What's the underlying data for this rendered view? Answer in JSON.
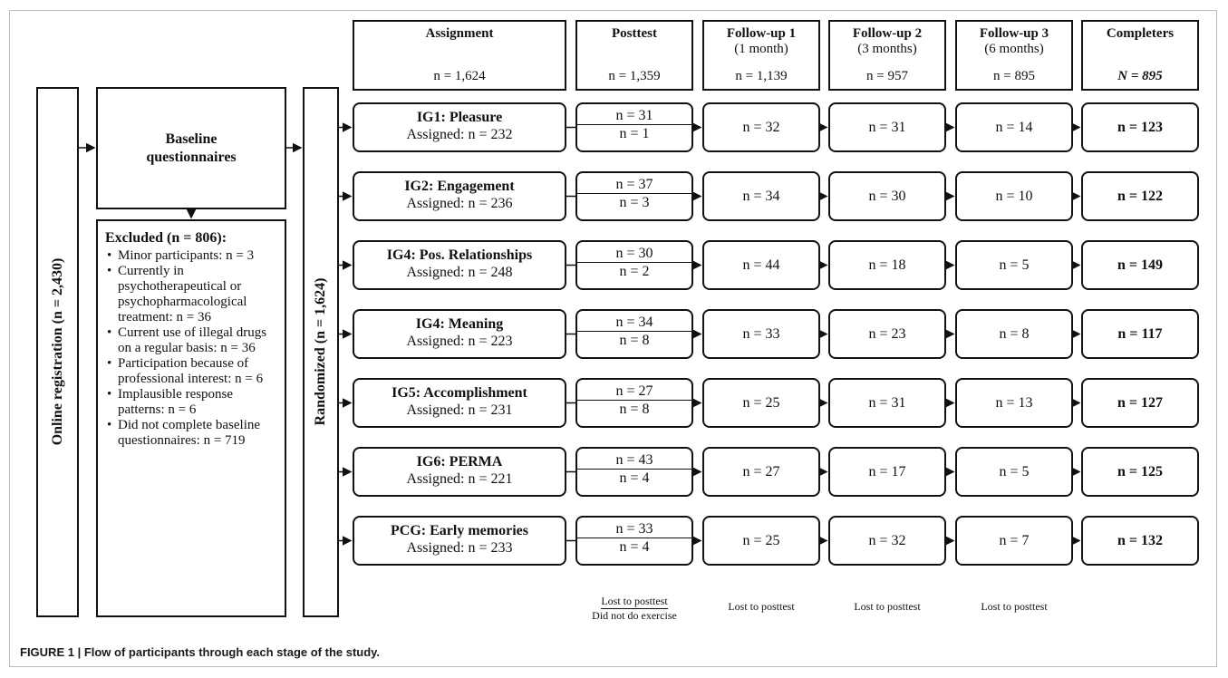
{
  "headers": [
    {
      "title": "Assignment",
      "sub": "",
      "n": "n = 1,624"
    },
    {
      "title": "Posttest",
      "sub": "",
      "n": "n = 1,359"
    },
    {
      "title": "Follow-up 1",
      "sub": "(1 month)",
      "n": "n = 1,139"
    },
    {
      "title": "Follow-up 2",
      "sub": "(3 months)",
      "n": "n = 957"
    },
    {
      "title": "Follow-up 3",
      "sub": "(6 months)",
      "n": "n = 895"
    },
    {
      "title": "Completers",
      "sub": "",
      "n": "N = 895"
    }
  ],
  "registration": "Online registration (n = 2,430)",
  "baseline": "Baseline questionnaires",
  "randomized": "Randomized (n = 1,624)",
  "excluded": {
    "heading": "Excluded (n = 806):",
    "items": [
      "Minor participants: n = 3",
      "Currently in psychotherapeutical or psychopharmacological treatment: n = 36",
      "Current use of illegal drugs on a regular basis: n = 36",
      "Participation because of professional interest: n = 6",
      "Implausible response patterns: n = 6",
      "Did not complete baseline questionnaires: n = 719"
    ]
  },
  "arms": [
    {
      "name": "IG1: Pleasure",
      "assigned": "Assigned: n = 232",
      "lost_post": "n = 31",
      "no_ex": "n = 1",
      "fu1": "n = 32",
      "fu2": "n = 31",
      "fu3": "n = 14",
      "completers": "n = 123"
    },
    {
      "name": "IG2: Engagement",
      "assigned": "Assigned: n = 236",
      "lost_post": "n = 37",
      "no_ex": "n = 3",
      "fu1": "n = 34",
      "fu2": "n = 30",
      "fu3": "n = 10",
      "completers": "n = 122"
    },
    {
      "name": "IG4: Pos. Relationships",
      "assigned": "Assigned: n = 248",
      "lost_post": "n = 30",
      "no_ex": "n = 2",
      "fu1": "n = 44",
      "fu2": "n = 18",
      "fu3": "n = 5",
      "completers": "n = 149"
    },
    {
      "name": "IG4: Meaning",
      "assigned": "Assigned: n = 223",
      "lost_post": "n = 34",
      "no_ex": "n = 8",
      "fu1": "n = 33",
      "fu2": "n = 23",
      "fu3": "n = 8",
      "completers": "n = 117"
    },
    {
      "name": "IG5: Accomplishment",
      "assigned": "Assigned: n = 231",
      "lost_post": "n = 27",
      "no_ex": "n = 8",
      "fu1": "n = 25",
      "fu2": "n = 31",
      "fu3": "n = 13",
      "completers": "n = 127"
    },
    {
      "name": "IG6: PERMA",
      "assigned": "Assigned: n = 221",
      "lost_post": "n = 43",
      "no_ex": "n = 4",
      "fu1": "n = 27",
      "fu2": "n = 17",
      "fu3": "n = 5",
      "completers": "n = 125"
    },
    {
      "name": "PCG: Early memories",
      "assigned": "Assigned: n = 233",
      "lost_post": "n = 33",
      "no_ex": "n = 4",
      "fu1": "n = 25",
      "fu2": "n = 32",
      "fu3": "n = 7",
      "completers": "n = 132"
    }
  ],
  "legend": {
    "posttest_top": "Lost to posttest",
    "posttest_bottom": "Did not do exercise",
    "fu1": "Lost to posttest",
    "fu2": "Lost to posttest",
    "fu3": "Lost to posttest"
  },
  "caption": "FIGURE 1 | Flow of participants through each stage of the study."
}
